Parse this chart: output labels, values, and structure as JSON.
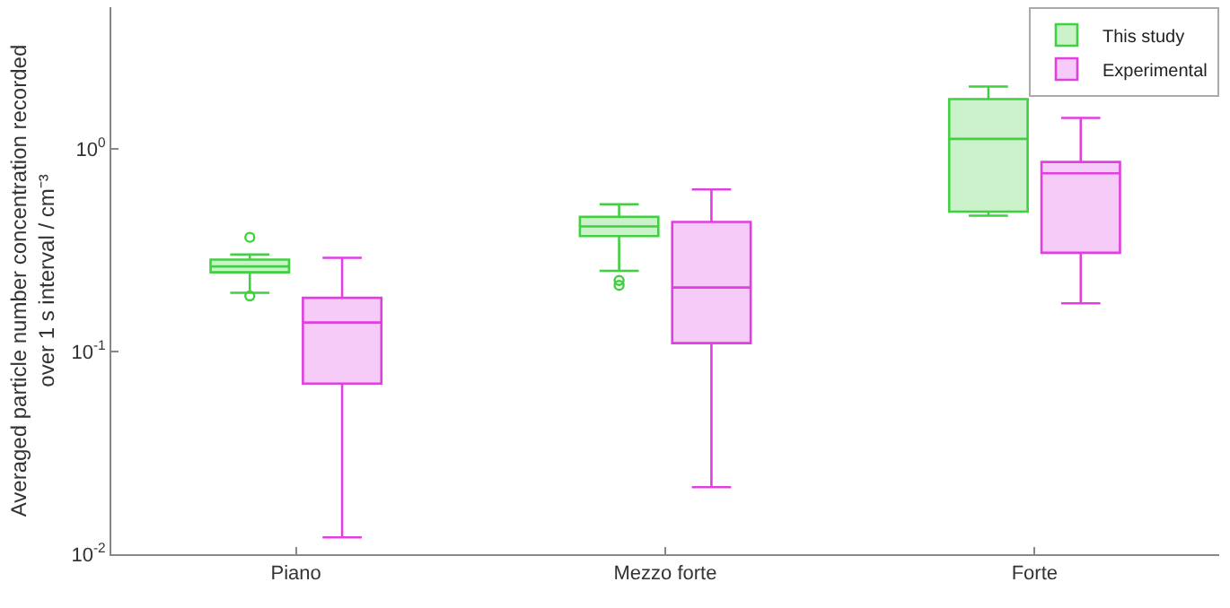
{
  "chart_data": {
    "type": "box",
    "ylabel": "Averaged particle number concentration recorded over 1 s interval / cm⁻³",
    "categories": [
      "Piano",
      "Mezzo forte",
      "Forte"
    ],
    "log": true,
    "ylim": [
      0.01,
      5
    ],
    "yticks": [
      {
        "value": 0.01,
        "label": "10$^{-2}$"
      },
      {
        "value": 0.1,
        "label": "10$^{-1}$"
      },
      {
        "value": 1,
        "label": "10$^{0}$"
      }
    ],
    "legend": "top right",
    "grid": false,
    "series": [
      {
        "name": "This study",
        "color": "#40d040",
        "boxes": [
          {
            "low": 0.195,
            "q1": 0.246,
            "median": 0.263,
            "q3": 0.284,
            "high": 0.301,
            "outliers": [
              0.366,
              0.188
            ]
          },
          {
            "low": 0.25,
            "q1": 0.371,
            "median": 0.414,
            "q3": 0.462,
            "high": 0.533,
            "outliers": [
              0.224,
              0.212
            ]
          },
          {
            "low": 0.468,
            "q1": 0.49,
            "median": 1.12,
            "q3": 1.76,
            "high": 2.03
          }
        ]
      },
      {
        "name": "Experimental",
        "color": "#e040e0",
        "boxes": [
          {
            "low": 0.0121,
            "q1": 0.0695,
            "median": 0.139,
            "q3": 0.184,
            "high": 0.29
          },
          {
            "low": 0.0214,
            "q1": 0.11,
            "median": 0.207,
            "q3": 0.436,
            "high": 0.63
          },
          {
            "low": 0.173,
            "q1": 0.307,
            "median": 0.757,
            "q3": 0.861,
            "high": 1.42
          }
        ]
      }
    ]
  }
}
